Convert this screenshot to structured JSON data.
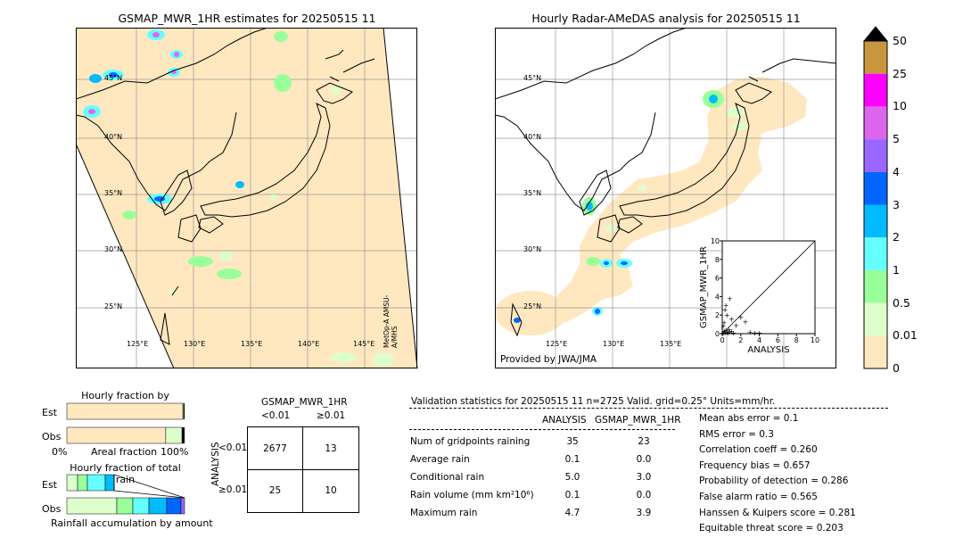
{
  "left_map": {
    "title": "GSMAP_MWR_1HR estimates for 20250515 11",
    "sensor_label": "MetOp-A AMSU-A/MHS",
    "lat_labels": [
      "45°N",
      "40°N",
      "35°N",
      "30°N",
      "25°N"
    ],
    "lon_labels": [
      "125°E",
      "130°E",
      "135°E",
      "140°E",
      "145°E"
    ]
  },
  "right_map": {
    "title": "Hourly Radar-AMeDAS analysis for 20250515 11",
    "credit": "Provided by JWA/JMA",
    "lat_labels": [
      "45°N",
      "40°N",
      "35°N",
      "30°N",
      "25°N"
    ],
    "lon_labels": [
      "125°E",
      "130°E",
      "135°E"
    ]
  },
  "colorbar": {
    "labels": [
      "50",
      "25",
      "10",
      "5",
      "4",
      "3",
      "2",
      "1",
      "0.5",
      "0.01",
      "0"
    ],
    "colors": [
      "#c8963c",
      "#ff00ff",
      "#dd66ee",
      "#9966ff",
      "#0066ff",
      "#00bbff",
      "#66ffff",
      "#99ff99",
      "#ddffcc",
      "#ffe8c0"
    ],
    "overflow_color": "#000000"
  },
  "scatter": {
    "xlabel": "ANALYSIS",
    "ylabel": "GSMAP_MWR_1HR",
    "ticks": [
      "0",
      "2",
      "4",
      "6",
      "8",
      "10"
    ],
    "top_tick": "10"
  },
  "occurrence": {
    "title": "Hourly fraction by occurence",
    "est_label": "Est",
    "obs_label": "Obs",
    "axis_left": "0%",
    "axis_mid": "Areal fraction",
    "axis_right": "100%",
    "est_fill": 0.985,
    "obs_fill": 0.84
  },
  "total_rain": {
    "title": "Hourly fraction of total rain",
    "est_label": "Est",
    "obs_label": "Obs",
    "footer": "Rainfall accumulation by amount"
  },
  "contingency": {
    "title": "GSMAP_MWR_1HR",
    "col_lt": "<0.01",
    "col_ge": "≥0.01",
    "row_axis": "ANALYSIS",
    "row_lt": "<0.01",
    "row_ge": "≥0.01",
    "cells": [
      "2677",
      "13",
      "25",
      "10"
    ]
  },
  "validation": {
    "header": "Validation statistics for 20250515 11  n=2725 Valid. grid=0.25° Units=mm/hr.",
    "col_analysis": "ANALYSIS",
    "col_gsmap": "GSMAP_MWR_1HR",
    "rows": [
      {
        "label": "Num of gridpoints raining",
        "a": "35",
        "g": "23"
      },
      {
        "label": "Average rain",
        "a": "0.1",
        "g": "0.0"
      },
      {
        "label": "Conditional rain",
        "a": "5.0",
        "g": "3.0"
      },
      {
        "label": "Rain volume (mm km²10⁶)",
        "a": "0.1",
        "g": "0.0"
      },
      {
        "label": "Maximum rain",
        "a": "4.7",
        "g": "3.9"
      }
    ],
    "scores": [
      "Mean abs error =    0.1",
      "RMS error =    0.3",
      "Correlation coeff =  0.260",
      "Frequency bias =  0.657",
      "Probability of detection =  0.286",
      "False alarm ratio =  0.565",
      "Hanssen & Kuipers score =  0.281",
      "Equitable threat score =  0.203"
    ]
  },
  "chart_data": {
    "type": "scatter",
    "xlabel": "ANALYSIS",
    "ylabel": "GSMAP_MWR_1HR",
    "xlim": [
      0,
      10
    ],
    "ylim": [
      0,
      10
    ],
    "points": [
      [
        0.1,
        0.1
      ],
      [
        0.2,
        0.3
      ],
      [
        0.3,
        0.1
      ],
      [
        0.4,
        0.4
      ],
      [
        0.5,
        0.2
      ],
      [
        0.6,
        0.1
      ],
      [
        0.7,
        0.5
      ],
      [
        0.8,
        0.2
      ],
      [
        1.0,
        0.3
      ],
      [
        1.2,
        0.1
      ],
      [
        0.2,
        1.2
      ],
      [
        0.5,
        2.0
      ],
      [
        0.8,
        3.8
      ],
      [
        1.0,
        1.6
      ],
      [
        1.5,
        0.9
      ],
      [
        2.0,
        1.8
      ],
      [
        2.5,
        1.3
      ],
      [
        3.0,
        0.2
      ],
      [
        3.5,
        0.1
      ],
      [
        0.4,
        3.1
      ],
      [
        0.1,
        0.8
      ],
      [
        4.0,
        0.1
      ],
      [
        0.3,
        2.6
      ]
    ]
  }
}
